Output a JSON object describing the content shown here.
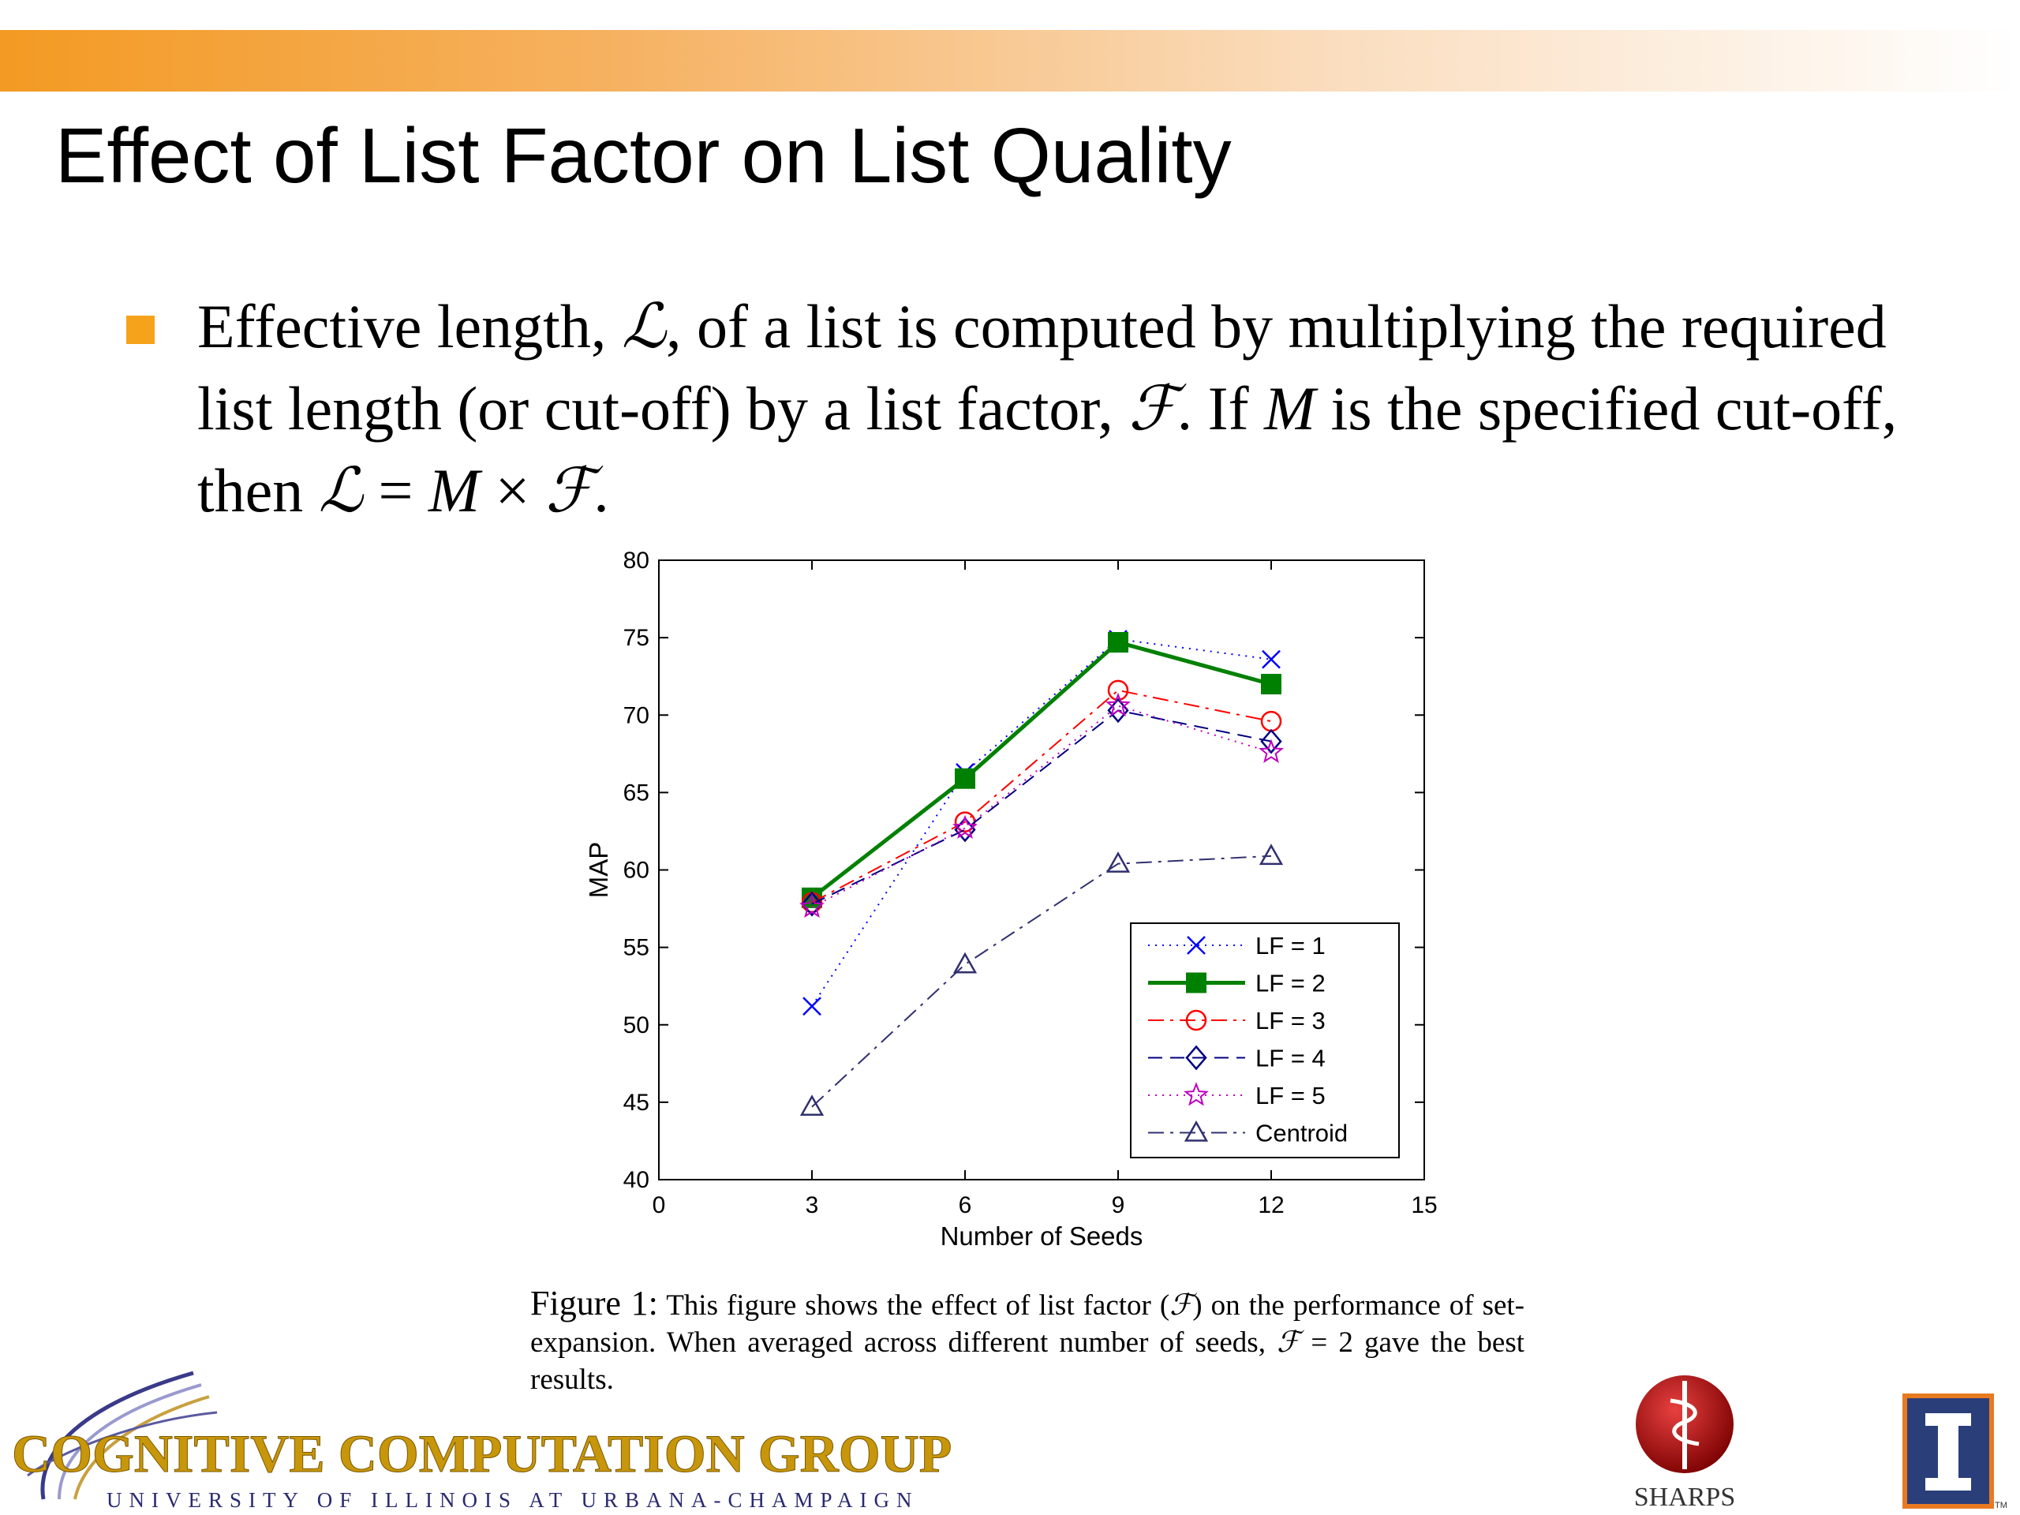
{
  "slide": {
    "title": "Effect of List Factor on List Quality",
    "bullet": {
      "p1": "Effective length, ",
      "L": "ℒ",
      "p2": ", of a list is computed by multiplying the required list length (or cut-off) by a list factor, ",
      "F": "ℱ",
      "p3": ". If ",
      "M": "M",
      "p4": " is the specified cut-off, then ",
      "L2": "ℒ",
      "eq": " = ",
      "M2": "M",
      "times": " × ",
      "F2": "ℱ",
      "end": "."
    },
    "caption": {
      "label": "Figure 1:",
      "t1": " This figure shows the effect of list factor (",
      "F": "ℱ",
      "t2": ") on the performance of set-expansion. When averaged across different number of seeds, ",
      "F2": "ℱ",
      "t3": " = 2 gave the best results."
    }
  },
  "logos": {
    "group_name": "COGNITIVE COMPUTATION GROUP",
    "university": "UNIVERSITY OF ILLINOIS AT URBANA-CHAMPAIGN",
    "sharps": "SHARPS",
    "uiuc_tm": "TM"
  },
  "colors": {
    "accent": "#f39a23",
    "bullet": "#f7a21b"
  },
  "chart_data": {
    "type": "line",
    "xlabel": "Number of Seeds",
    "ylabel": "MAP",
    "xlim": [
      0,
      15
    ],
    "ylim": [
      40,
      80
    ],
    "xticks": [
      0,
      3,
      6,
      9,
      12,
      15
    ],
    "yticks": [
      40,
      45,
      50,
      55,
      60,
      65,
      70,
      75,
      80
    ],
    "grid": false,
    "legend_position": "bottom-right",
    "x": [
      3,
      6,
      9,
      12
    ],
    "series": [
      {
        "name": "LF = 1",
        "values": [
          51.2,
          66.3,
          74.9,
          73.6
        ],
        "color": "#0000ff",
        "marker": "x",
        "dash": "2 7",
        "width": 2
      },
      {
        "name": "LF = 2",
        "values": [
          58.2,
          65.9,
          74.7,
          72.0
        ],
        "color": "#008000",
        "marker": "square",
        "dash": "",
        "width": 5
      },
      {
        "name": "LF = 3",
        "values": [
          57.9,
          63.1,
          71.6,
          69.6
        ],
        "color": "#ff0000",
        "marker": "circle",
        "dash": "20 8 4 8",
        "width": 2
      },
      {
        "name": "LF = 4",
        "values": [
          57.8,
          62.6,
          70.3,
          68.3
        ],
        "color": "#000080",
        "marker": "diamond",
        "dash": "18 10",
        "width": 2
      },
      {
        "name": "LF = 5",
        "values": [
          57.6,
          62.7,
          70.6,
          67.6
        ],
        "color": "#bf00bf",
        "marker": "star",
        "dash": "2 7",
        "width": 2
      },
      {
        "name": "Centroid",
        "values": [
          44.7,
          53.9,
          60.4,
          60.9
        ],
        "color": "#303070",
        "marker": "triangle",
        "dash": "20 8 4 8",
        "width": 2
      }
    ]
  }
}
